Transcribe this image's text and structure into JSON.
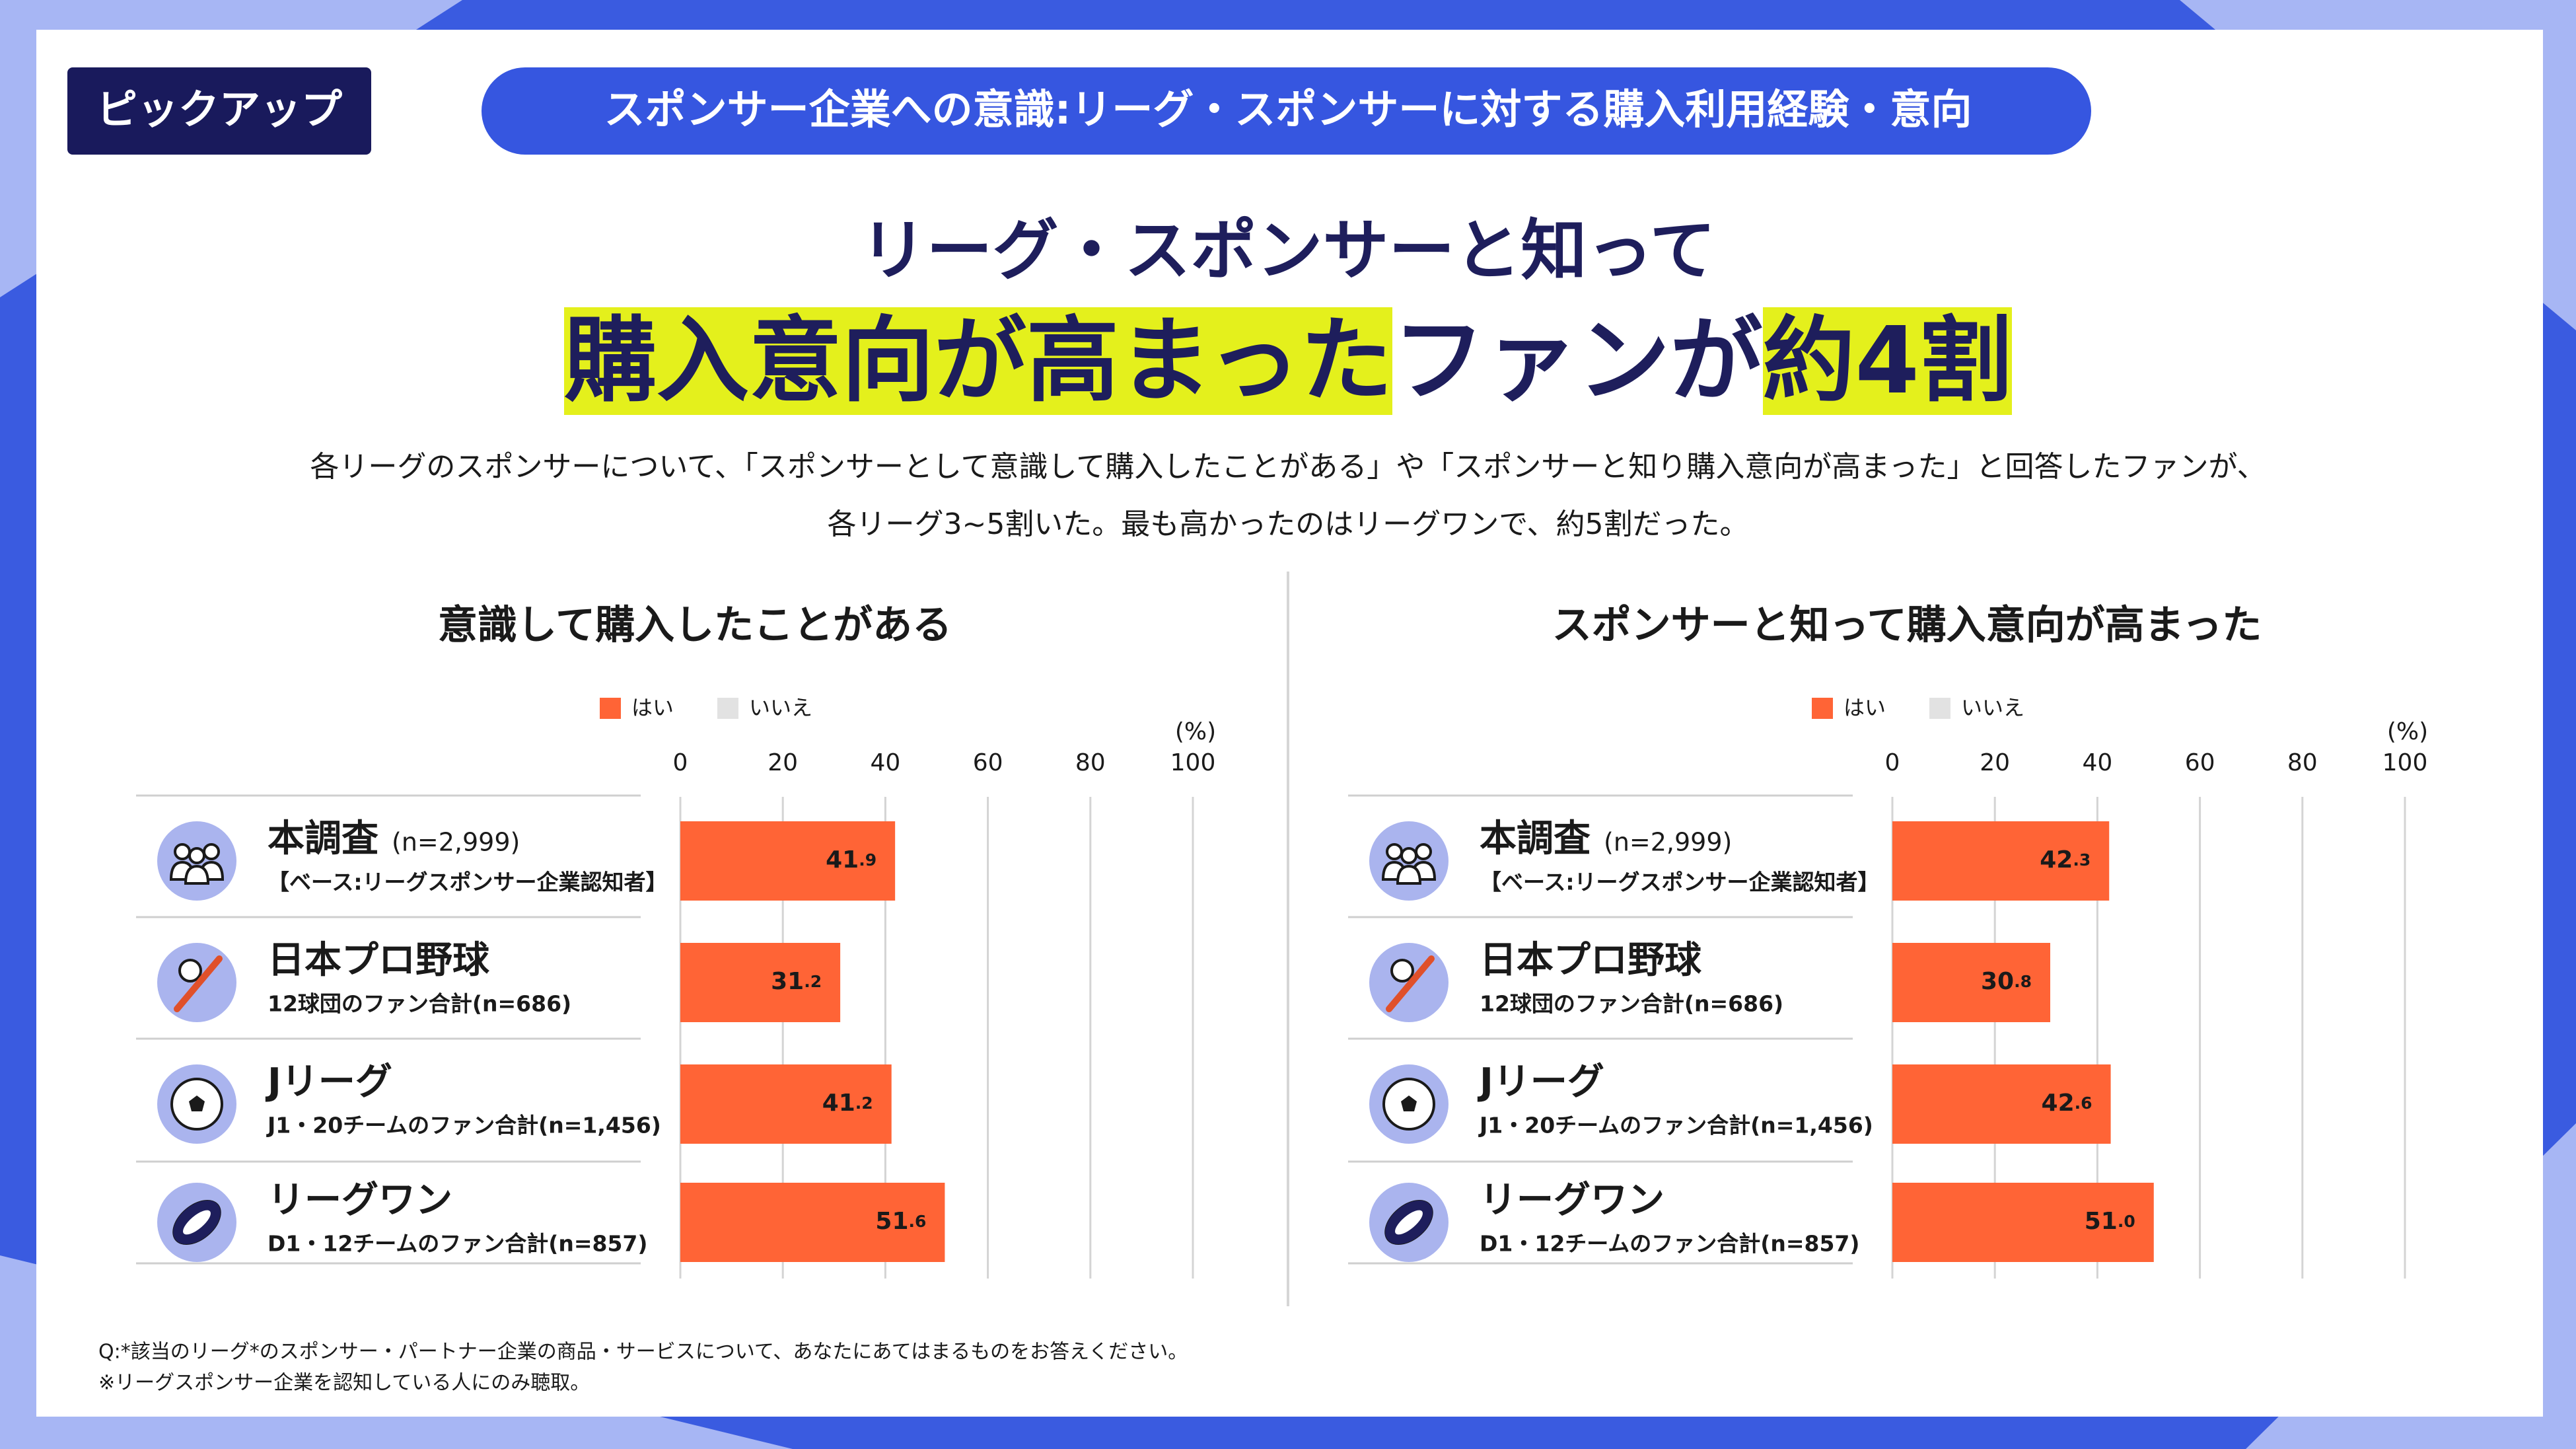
{
  "header": {
    "tag": "ピックアップ",
    "title": "スポンサー企業への意識:リーグ・スポンサーに対する購入利用経験・意向"
  },
  "headline": {
    "line1": "リーグ・スポンサーと知って",
    "line2": [
      {
        "text": "購入意向が高まった",
        "highlight": true
      },
      {
        "text": "ファンが",
        "highlight": false
      },
      {
        "text": "約4割",
        "highlight": true
      }
    ],
    "highlight_color": "#e4f01c"
  },
  "description": [
    "各リーグのスポンサーについて、「スポンサーとして意識して購入したことがある」や「スポンサーと知り購入意向が高まった」と回答したファンが、",
    "各リーグ3~5割いた。最も高かったのはリーグワンで、約5割だった。"
  ],
  "chart_data": [
    {
      "type": "bar",
      "orientation": "horizontal",
      "title": "意識して購入したことがある",
      "unit": "(%)",
      "categories": [
        "本調査",
        "日本プロ野球",
        "Jリーグ",
        "リーグワン"
      ],
      "category_samples": [
        "(n=2,999)",
        null,
        null,
        null
      ],
      "category_notes": [
        "【ベース:リーグスポンサー企業認知者】",
        "12球団のファン合計(n=686)",
        "J1・20チームのファン合計(n=1,456)",
        "D1・12チームのファン合計(n=857)"
      ],
      "series": [
        {
          "name": "はい",
          "color": "#ff6436",
          "values": [
            41.9,
            31.2,
            41.2,
            51.6
          ]
        },
        {
          "name": "いいえ",
          "color": "#e2e2e2"
        }
      ],
      "xlim": [
        0,
        100
      ],
      "xticks": [
        0,
        20,
        40,
        60,
        80,
        100
      ],
      "grid": true
    },
    {
      "type": "bar",
      "orientation": "horizontal",
      "title": "スポンサーと知って購入意向が高まった",
      "unit": "(%)",
      "categories": [
        "本調査",
        "日本プロ野球",
        "Jリーグ",
        "リーグワン"
      ],
      "category_samples": [
        "(n=2,999)",
        null,
        null,
        null
      ],
      "category_notes": [
        "【ベース:リーグスポンサー企業認知者】",
        "12球団のファン合計(n=686)",
        "J1・20チームのファン合計(n=1,456)",
        "D1・12チームのファン合計(n=857)"
      ],
      "series": [
        {
          "name": "はい",
          "color": "#ff6436",
          "values": [
            42.3,
            30.8,
            42.6,
            51.0
          ],
          "value_labels": [
            "42.3",
            "30.8",
            "42.6",
            "51.0"
          ]
        },
        {
          "name": "いいえ",
          "color": "#e2e2e2"
        }
      ],
      "xlim": [
        0,
        100
      ],
      "xticks": [
        0,
        20,
        40,
        60,
        80,
        100
      ],
      "grid": true
    }
  ],
  "footnotes": [
    "Q:*該当のリーグ*のスポンサー・パートナー企業の商品・サービスについて、あなたにあてはまるものをお答えください。",
    "※リーグスポンサー企業を認知している人にのみ聴取。"
  ]
}
